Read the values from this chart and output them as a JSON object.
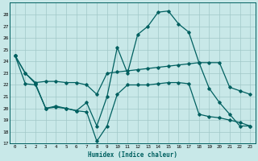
{
  "xlabel": "Humidex (Indice chaleur)",
  "bg_color": "#c8e8e8",
  "grid_color": "#a0c8c8",
  "line_color": "#006060",
  "xlim": [
    -0.5,
    23.5
  ],
  "ylim": [
    17,
    29
  ],
  "yticks": [
    17,
    18,
    19,
    20,
    21,
    22,
    23,
    24,
    25,
    26,
    27,
    28
  ],
  "xticks": [
    0,
    1,
    2,
    3,
    4,
    5,
    6,
    7,
    8,
    9,
    10,
    11,
    12,
    13,
    14,
    15,
    16,
    17,
    18,
    19,
    20,
    21,
    22,
    23
  ],
  "series1_x": [
    0,
    1,
    2,
    3,
    4,
    5,
    6,
    7,
    8,
    9,
    10,
    11,
    12,
    13,
    14,
    15,
    16,
    17,
    18,
    19,
    20,
    21,
    22,
    23
  ],
  "series1_y": [
    24.5,
    23.0,
    22.1,
    20.0,
    20.2,
    20.0,
    19.8,
    20.5,
    18.5,
    21.0,
    25.2,
    23.0,
    26.3,
    27.0,
    28.2,
    28.3,
    27.2,
    26.5,
    23.9,
    21.7,
    20.5,
    19.5,
    18.5,
    18.5
  ],
  "series2_x": [
    0,
    1,
    2,
    3,
    4,
    5,
    6,
    7,
    8,
    9,
    10,
    11,
    12,
    13,
    14,
    15,
    16,
    17,
    18,
    19,
    20,
    21,
    22,
    23
  ],
  "series2_y": [
    24.5,
    23.0,
    22.2,
    22.3,
    22.3,
    22.2,
    22.2,
    22.0,
    21.2,
    23.0,
    23.1,
    23.2,
    23.3,
    23.4,
    23.5,
    23.6,
    23.7,
    23.8,
    23.9,
    23.9,
    23.9,
    21.8,
    21.5,
    21.2
  ],
  "series3_x": [
    0,
    1,
    2,
    3,
    4,
    5,
    6,
    7,
    8,
    9,
    10,
    11,
    12,
    13,
    14,
    15,
    16,
    17,
    18,
    19,
    20,
    21,
    22,
    23
  ],
  "series3_y": [
    24.5,
    22.1,
    22.0,
    20.0,
    20.1,
    20.0,
    19.8,
    19.7,
    17.2,
    18.5,
    21.2,
    22.0,
    22.0,
    22.0,
    22.1,
    22.2,
    22.2,
    22.1,
    19.5,
    19.3,
    19.2,
    19.0,
    18.8,
    18.5
  ]
}
